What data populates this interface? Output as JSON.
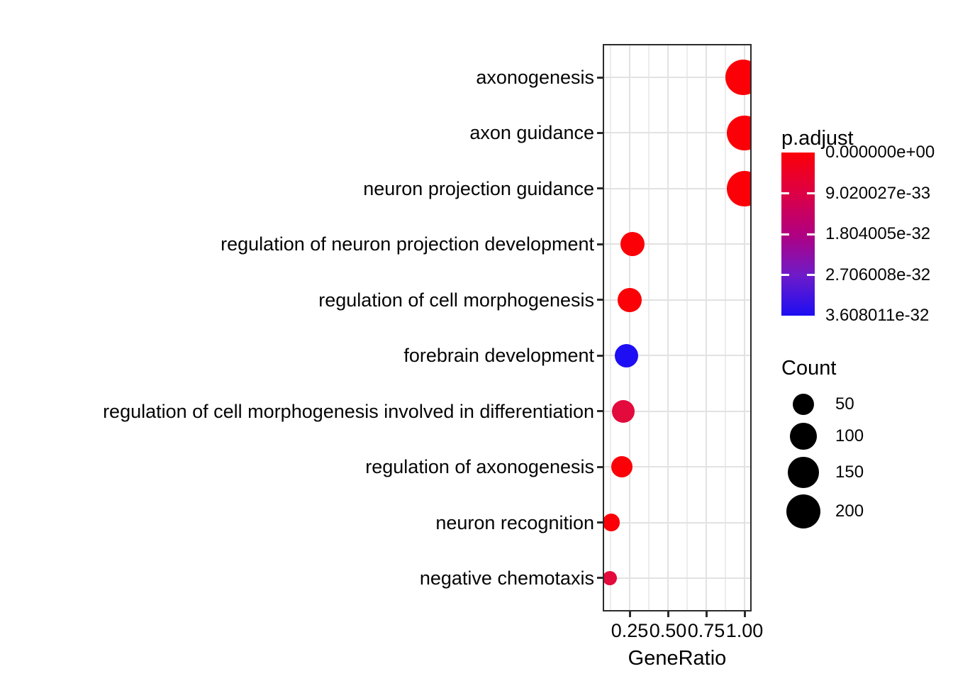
{
  "chart_data": {
    "type": "scatter",
    "subtype": "enrichment-dotplot",
    "title": "",
    "xlabel": "GeneRatio",
    "ylabel": "",
    "xlim": [
      0.074,
      1.046
    ],
    "x_major_ticks": [
      0.25,
      0.5,
      0.75,
      1.0
    ],
    "x_tick_labels": [
      "0.25",
      "0.50",
      "0.75",
      "1.00"
    ],
    "x_minor_ticks": [
      0.125,
      0.375,
      0.625,
      0.875
    ],
    "grid": true,
    "categories": [
      "axonogenesis",
      "axon guidance",
      "neuron projection guidance",
      "regulation of neuron projection development",
      "regulation of cell morphogenesis",
      "forebrain development",
      "regulation of cell morphogenesis involved in differentiation",
      "regulation of axonogenesis",
      "neuron recognition",
      "negative chemotaxis"
    ],
    "points": [
      {
        "category": "axonogenesis",
        "gene_ratio": 0.99,
        "count": 220,
        "p_adjust": 0,
        "color": "#FB0007"
      },
      {
        "category": "axon guidance",
        "gene_ratio": 1.0,
        "count": 210,
        "p_adjust": 0,
        "color": "#FB0007"
      },
      {
        "category": "neuron projection guidance",
        "gene_ratio": 1.0,
        "count": 215,
        "p_adjust": 0,
        "color": "#FB0007"
      },
      {
        "category": "regulation of neuron projection development",
        "gene_ratio": 0.27,
        "count": 74,
        "p_adjust": 5e-35,
        "color": "#FB0007"
      },
      {
        "category": "regulation of cell morphogenesis",
        "gene_ratio": 0.25,
        "count": 72,
        "p_adjust": 5e-35,
        "color": "#FB0007"
      },
      {
        "category": "forebrain development",
        "gene_ratio": 0.23,
        "count": 68,
        "p_adjust": 3.6e-32,
        "color": "#1D0EF3"
      },
      {
        "category": "regulation of cell morphogenesis involved in differentiation",
        "gene_ratio": 0.21,
        "count": 62,
        "p_adjust": 5.5e-33,
        "color": "#E30A3C"
      },
      {
        "category": "regulation of axonogenesis",
        "gene_ratio": 0.2,
        "count": 50,
        "p_adjust": 5e-34,
        "color": "#FB0007"
      },
      {
        "category": "neuron recognition",
        "gene_ratio": 0.13,
        "count": 23,
        "p_adjust": 2e-33,
        "color": "#FB0007"
      },
      {
        "category": "negative chemotaxis",
        "gene_ratio": 0.12,
        "count": 10,
        "p_adjust": 5.5e-33,
        "color": "#E30A3C"
      }
    ],
    "legend_color": {
      "title": "p.adjust",
      "labels": [
        "0.000000e+00",
        "9.020027e-33",
        "1.804005e-32",
        "2.706008e-32",
        "3.608011e-32"
      ],
      "gradient_stops": [
        "#FB0007",
        "#DD0045",
        "#B10080",
        "#6F1BC8",
        "#1D0EF3"
      ],
      "position": "right"
    },
    "legend_size": {
      "title": "Count",
      "entries": [
        {
          "label": "50",
          "count": 50
        },
        {
          "label": "100",
          "count": 100
        },
        {
          "label": "150",
          "count": 150
        },
        {
          "label": "200",
          "count": 200
        }
      ],
      "position": "right"
    }
  },
  "colors": {
    "background": "#FFFFFF",
    "panel_border": "#2B2B2B",
    "grid_major": "#E2E2E2",
    "grid_minor": "#ECECEC",
    "tick": "#2B2B2B",
    "text": "#050505",
    "legend_dot": "#000000"
  }
}
